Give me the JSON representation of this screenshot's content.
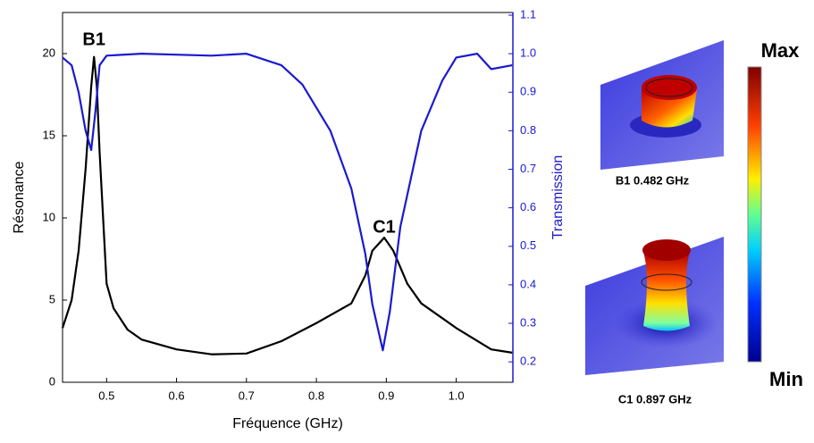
{
  "chart_data": {
    "type": "line",
    "x_label": "Fréquence (GHz)",
    "y_label": "Résonance",
    "y2_label": "Transmission",
    "xlim": [
      0.437,
      1.081
    ],
    "xticks": [
      0.5,
      0.6,
      0.7,
      0.8,
      0.9,
      {
        "value": 1.0,
        "label": "1.0"
      }
    ],
    "ylim": [
      0,
      22.5
    ],
    "yticks": [
      0,
      5,
      10,
      15,
      20
    ],
    "y2lim": [
      0.147,
      1.107
    ],
    "y2ticks": [
      0.2,
      0.3,
      0.4,
      0.5,
      0.6,
      0.7,
      0.8,
      0.9,
      {
        "value": 1.0,
        "label": "1.0"
      },
      1.1
    ],
    "series": [
      {
        "color": "#000000",
        "x": [
          0.437,
          0.45,
          0.46,
          0.47,
          0.478,
          0.482,
          0.486,
          0.49,
          0.5,
          0.51,
          0.53,
          0.55,
          0.6,
          0.65,
          0.7,
          0.75,
          0.8,
          0.85,
          0.87,
          0.88,
          0.897,
          0.91,
          0.93,
          0.95,
          1.0,
          1.05,
          1.08
        ],
        "values": [
          3.3,
          5,
          8,
          13,
          18,
          19.8,
          18,
          14,
          6,
          4.5,
          3.2,
          2.6,
          2.0,
          1.7,
          1.75,
          2.5,
          3.6,
          4.8,
          6.5,
          8.0,
          8.8,
          8.0,
          6.0,
          4.8,
          3.3,
          2.0,
          1.8
        ]
      },
      {
        "color": "#1a1ad0",
        "axis": "y2",
        "x": [
          0.437,
          0.45,
          0.46,
          0.47,
          0.478,
          0.484,
          0.49,
          0.5,
          0.55,
          0.65,
          0.7,
          0.75,
          0.78,
          0.82,
          0.85,
          0.87,
          0.88,
          0.895,
          0.905,
          0.92,
          0.95,
          0.98,
          1.0,
          1.03,
          1.05,
          1.08
        ],
        "values": [
          0.99,
          0.97,
          0.9,
          0.8,
          0.75,
          0.85,
          0.97,
          0.995,
          1.0,
          0.995,
          1.0,
          0.97,
          0.92,
          0.8,
          0.65,
          0.48,
          0.35,
          0.23,
          0.33,
          0.55,
          0.8,
          0.93,
          0.99,
          1.0,
          0.96,
          0.97
        ]
      }
    ],
    "annotations": [
      {
        "text": "B1",
        "x": 0.482,
        "y": 20.8
      },
      {
        "text": "C1",
        "x": 0.897,
        "y": 9.4
      }
    ]
  },
  "panels": [
    {
      "caption": "B1 0.482 GHz"
    },
    {
      "caption": "C1 0.897 GHz"
    }
  ],
  "colorbar": {
    "max": "Max",
    "min": "Min"
  }
}
